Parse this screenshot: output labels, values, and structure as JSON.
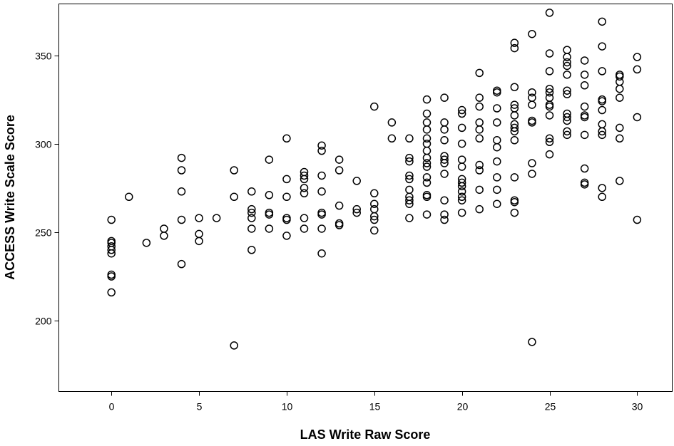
{
  "chart_data": {
    "type": "scatter",
    "title": "",
    "xlabel": "LAS Write Raw Score",
    "ylabel": "ACCESS Write Scale Score",
    "xlim": [
      -3,
      32
    ],
    "ylim": [
      160,
      379
    ],
    "x_ticks": [
      0,
      5,
      10,
      15,
      20,
      25,
      30
    ],
    "y_ticks": [
      200,
      250,
      300,
      350
    ],
    "grid": false,
    "legend": "none",
    "marker": "open-circle",
    "marker_color": "#000000",
    "points": [
      [
        0,
        257
      ],
      [
        0,
        245
      ],
      [
        0,
        244
      ],
      [
        0,
        242
      ],
      [
        0,
        240
      ],
      [
        0,
        238
      ],
      [
        0,
        226
      ],
      [
        0,
        225
      ],
      [
        0,
        216
      ],
      [
        1,
        270
      ],
      [
        2,
        244
      ],
      [
        3,
        252
      ],
      [
        3,
        248
      ],
      [
        4,
        292
      ],
      [
        4,
        285
      ],
      [
        4,
        273
      ],
      [
        4,
        257
      ],
      [
        4,
        232
      ],
      [
        5,
        258
      ],
      [
        5,
        249
      ],
      [
        5,
        245
      ],
      [
        6,
        258
      ],
      [
        7,
        285
      ],
      [
        7,
        270
      ],
      [
        7,
        186
      ],
      [
        8,
        273
      ],
      [
        8,
        263
      ],
      [
        8,
        261
      ],
      [
        8,
        258
      ],
      [
        8,
        252
      ],
      [
        8,
        240
      ],
      [
        9,
        291
      ],
      [
        9,
        271
      ],
      [
        9,
        261
      ],
      [
        9,
        260
      ],
      [
        9,
        252
      ],
      [
        10,
        303
      ],
      [
        10,
        280
      ],
      [
        10,
        270
      ],
      [
        10,
        258
      ],
      [
        10,
        257
      ],
      [
        10,
        248
      ],
      [
        11,
        284
      ],
      [
        11,
        282
      ],
      [
        11,
        280
      ],
      [
        11,
        275
      ],
      [
        11,
        272
      ],
      [
        11,
        258
      ],
      [
        11,
        252
      ],
      [
        12,
        299
      ],
      [
        12,
        296
      ],
      [
        12,
        282
      ],
      [
        12,
        273
      ],
      [
        12,
        261
      ],
      [
        12,
        260
      ],
      [
        12,
        252
      ],
      [
        12,
        238
      ],
      [
        13,
        291
      ],
      [
        13,
        285
      ],
      [
        13,
        265
      ],
      [
        13,
        255
      ],
      [
        13,
        254
      ],
      [
        14,
        279
      ],
      [
        14,
        263
      ],
      [
        14,
        261
      ],
      [
        15,
        321
      ],
      [
        15,
        272
      ],
      [
        15,
        266
      ],
      [
        15,
        263
      ],
      [
        15,
        259
      ],
      [
        15,
        257
      ],
      [
        15,
        251
      ],
      [
        16,
        312
      ],
      [
        16,
        303
      ],
      [
        17,
        303
      ],
      [
        17,
        292
      ],
      [
        17,
        290
      ],
      [
        17,
        282
      ],
      [
        17,
        280
      ],
      [
        17,
        274
      ],
      [
        17,
        270
      ],
      [
        17,
        268
      ],
      [
        17,
        266
      ],
      [
        17,
        258
      ],
      [
        18,
        325
      ],
      [
        18,
        317
      ],
      [
        18,
        312
      ],
      [
        18,
        308
      ],
      [
        18,
        303
      ],
      [
        18,
        300
      ],
      [
        18,
        296
      ],
      [
        18,
        292
      ],
      [
        18,
        289
      ],
      [
        18,
        287
      ],
      [
        18,
        281
      ],
      [
        18,
        278
      ],
      [
        18,
        271
      ],
      [
        18,
        270
      ],
      [
        18,
        260
      ],
      [
        19,
        326
      ],
      [
        19,
        312
      ],
      [
        19,
        308
      ],
      [
        19,
        302
      ],
      [
        19,
        293
      ],
      [
        19,
        291
      ],
      [
        19,
        289
      ],
      [
        19,
        283
      ],
      [
        19,
        268
      ],
      [
        19,
        260
      ],
      [
        19,
        257
      ],
      [
        20,
        319
      ],
      [
        20,
        317
      ],
      [
        20,
        309
      ],
      [
        20,
        300
      ],
      [
        20,
        291
      ],
      [
        20,
        287
      ],
      [
        20,
        280
      ],
      [
        20,
        278
      ],
      [
        20,
        276
      ],
      [
        20,
        273
      ],
      [
        20,
        270
      ],
      [
        20,
        268
      ],
      [
        20,
        261
      ],
      [
        21,
        340
      ],
      [
        21,
        326
      ],
      [
        21,
        321
      ],
      [
        21,
        312
      ],
      [
        21,
        308
      ],
      [
        21,
        303
      ],
      [
        21,
        288
      ],
      [
        21,
        285
      ],
      [
        21,
        274
      ],
      [
        21,
        263
      ],
      [
        22,
        330
      ],
      [
        22,
        329
      ],
      [
        22,
        320
      ],
      [
        22,
        312
      ],
      [
        22,
        302
      ],
      [
        22,
        298
      ],
      [
        22,
        290
      ],
      [
        22,
        281
      ],
      [
        22,
        274
      ],
      [
        22,
        266
      ],
      [
        23,
        357
      ],
      [
        23,
        354
      ],
      [
        23,
        332
      ],
      [
        23,
        322
      ],
      [
        23,
        320
      ],
      [
        23,
        316
      ],
      [
        23,
        311
      ],
      [
        23,
        309
      ],
      [
        23,
        307
      ],
      [
        23,
        302
      ],
      [
        23,
        281
      ],
      [
        23,
        268
      ],
      [
        23,
        267
      ],
      [
        23,
        261
      ],
      [
        24,
        362
      ],
      [
        24,
        329
      ],
      [
        24,
        326
      ],
      [
        24,
        322
      ],
      [
        24,
        313
      ],
      [
        24,
        312
      ],
      [
        24,
        289
      ],
      [
        24,
        283
      ],
      [
        24,
        188
      ],
      [
        25,
        374
      ],
      [
        25,
        351
      ],
      [
        25,
        341
      ],
      [
        25,
        331
      ],
      [
        25,
        329
      ],
      [
        25,
        326
      ],
      [
        25,
        322
      ],
      [
        25,
        321
      ],
      [
        25,
        316
      ],
      [
        25,
        303
      ],
      [
        25,
        301
      ],
      [
        25,
        294
      ],
      [
        26,
        353
      ],
      [
        26,
        349
      ],
      [
        26,
        346
      ],
      [
        26,
        344
      ],
      [
        26,
        339
      ],
      [
        26,
        330
      ],
      [
        26,
        328
      ],
      [
        26,
        317
      ],
      [
        26,
        315
      ],
      [
        26,
        313
      ],
      [
        26,
        307
      ],
      [
        26,
        305
      ],
      [
        27,
        347
      ],
      [
        27,
        339
      ],
      [
        27,
        333
      ],
      [
        27,
        321
      ],
      [
        27,
        316
      ],
      [
        27,
        315
      ],
      [
        27,
        305
      ],
      [
        27,
        286
      ],
      [
        27,
        278
      ],
      [
        27,
        277
      ],
      [
        28,
        369
      ],
      [
        28,
        355
      ],
      [
        28,
        341
      ],
      [
        28,
        325
      ],
      [
        28,
        324
      ],
      [
        28,
        319
      ],
      [
        28,
        311
      ],
      [
        28,
        307
      ],
      [
        28,
        305
      ],
      [
        28,
        275
      ],
      [
        28,
        270
      ],
      [
        29,
        339
      ],
      [
        29,
        338
      ],
      [
        29,
        335
      ],
      [
        29,
        331
      ],
      [
        29,
        326
      ],
      [
        29,
        309
      ],
      [
        29,
        303
      ],
      [
        29,
        279
      ],
      [
        30,
        349
      ],
      [
        30,
        342
      ],
      [
        30,
        315
      ],
      [
        30,
        257
      ]
    ]
  }
}
